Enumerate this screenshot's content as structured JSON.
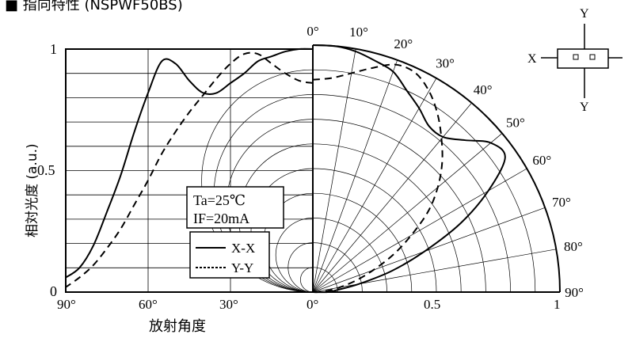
{
  "title": "■ 指向特性 (NSPWF50BS)",
  "chart_data": {
    "type": "line",
    "title": "指向特性 (NSPWF50BS)",
    "ylabel": "相対光度 (a.u.)",
    "xlabel": "放射角度",
    "ylim": [
      0,
      1
    ],
    "y_ticks": [
      "0",
      "0.5",
      "1"
    ],
    "left_x_ticks": [
      "90°",
      "60°",
      "30°",
      "0°"
    ],
    "radial_ticks": [
      "0.5",
      "1"
    ],
    "polar_angle_labels": [
      "0°",
      "10°",
      "20°",
      "30°",
      "40°",
      "50°",
      "60°",
      "70°",
      "80°",
      "90°"
    ],
    "conditions": [
      "Ta=25℃",
      "IF=20mA"
    ],
    "legend": [
      "X-X",
      "Y-Y"
    ],
    "inset_labels": {
      "x": "X",
      "y_top": "Y",
      "y_bottom": "Y"
    },
    "series": [
      {
        "name": "X-X",
        "style": "solid",
        "angle_deg": [
          0,
          5,
          10,
          15,
          20,
          25,
          30,
          35,
          40,
          45,
          50,
          55,
          60,
          65,
          70,
          75,
          80,
          85,
          90
        ],
        "values": [
          1.0,
          1.0,
          0.99,
          0.97,
          0.95,
          0.9,
          0.86,
          0.82,
          0.82,
          0.87,
          0.94,
          0.95,
          0.82,
          0.66,
          0.48,
          0.33,
          0.19,
          0.1,
          0.06
        ]
      },
      {
        "name": "Y-Y",
        "style": "dashed",
        "angle_deg": [
          0,
          5,
          10,
          15,
          20,
          25,
          30,
          35,
          40,
          45,
          50,
          55,
          60,
          65,
          70,
          75,
          80,
          85,
          90
        ],
        "values": [
          0.86,
          0.87,
          0.9,
          0.94,
          0.98,
          0.98,
          0.94,
          0.88,
          0.81,
          0.74,
          0.66,
          0.57,
          0.46,
          0.36,
          0.26,
          0.18,
          0.11,
          0.06,
          0.02
        ]
      }
    ]
  }
}
